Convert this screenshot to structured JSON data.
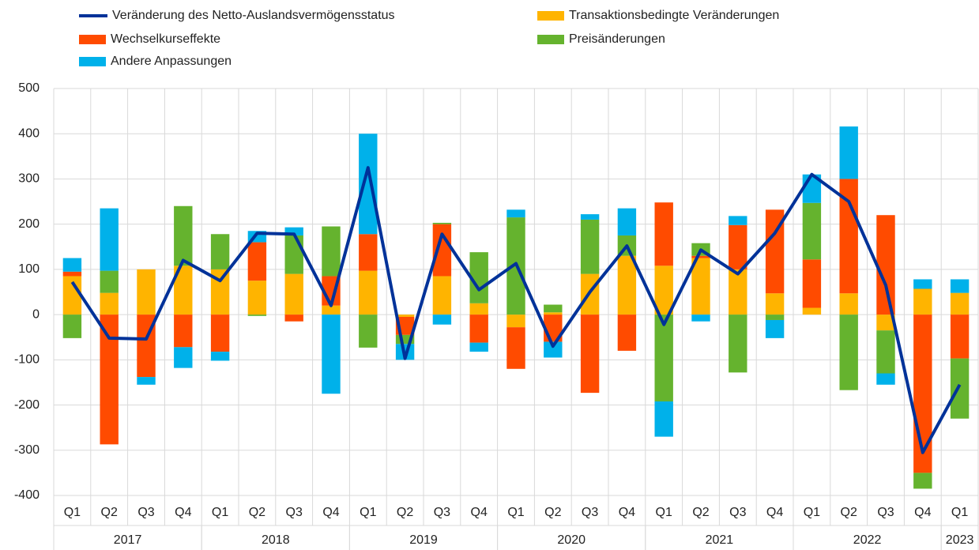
{
  "chart_data": {
    "type": "bar",
    "stacked": true,
    "categories": [
      "Q1",
      "Q2",
      "Q3",
      "Q4",
      "Q1",
      "Q2",
      "Q3",
      "Q4",
      "Q1",
      "Q2",
      "Q3",
      "Q4",
      "Q1",
      "Q2",
      "Q3",
      "Q4",
      "Q1",
      "Q2",
      "Q3",
      "Q4",
      "Q1",
      "Q2",
      "Q3",
      "Q4",
      "Q1"
    ],
    "years": [
      {
        "label": "2017",
        "quarters": 4
      },
      {
        "label": "2018",
        "quarters": 4
      },
      {
        "label": "2019",
        "quarters": 4
      },
      {
        "label": "2020",
        "quarters": 4
      },
      {
        "label": "2021",
        "quarters": 4
      },
      {
        "label": "2022",
        "quarters": 4
      },
      {
        "label": "2023",
        "quarters": 1
      }
    ],
    "line": {
      "name": "Veränderung des Netto-Auslandsvermögensstatus",
      "color": "#003299",
      "values": [
        72,
        -52,
        -54,
        120,
        75,
        180,
        178,
        20,
        325,
        -97,
        178,
        55,
        113,
        -70,
        50,
        152,
        -22,
        143,
        90,
        180,
        310,
        250,
        65,
        -305,
        -155
      ]
    },
    "series": [
      {
        "name": "Transaktionsbedingte Veränderungen",
        "color": "#ffb400",
        "values": [
          85,
          48,
          100,
          108,
          100,
          75,
          90,
          20,
          97,
          -5,
          85,
          25,
          -28,
          5,
          90,
          130,
          108,
          125,
          100,
          47,
          15,
          47,
          -35,
          57,
          48
        ]
      },
      {
        "name": "Wechselkurseffekte",
        "color": "#ff4b00",
        "values": [
          10,
          -287,
          -138,
          -72,
          -82,
          85,
          -15,
          65,
          81,
          -40,
          115,
          -62,
          -92,
          -60,
          -173,
          -80,
          140,
          5,
          98,
          185,
          107,
          253,
          220,
          -350,
          -97
        ]
      },
      {
        "name": "Preisänderungen",
        "color": "#65b32e",
        "values": [
          -52,
          49,
          0,
          132,
          78,
          -3,
          85,
          110,
          -73,
          -20,
          3,
          113,
          215,
          17,
          120,
          45,
          -192,
          28,
          -128,
          -12,
          125,
          -167,
          -95,
          -35,
          -133
        ]
      },
      {
        "name": "Andere Anpassungen",
        "color": "#00b1ea",
        "values": [
          30,
          138,
          -17,
          -46,
          -20,
          25,
          18,
          -175,
          222,
          -35,
          -22,
          -20,
          17,
          -35,
          12,
          60,
          -78,
          -15,
          20,
          -40,
          63,
          116,
          -25,
          21,
          30
        ]
      }
    ],
    "ylim": [
      -400,
      500
    ],
    "yticks": [
      -400,
      -300,
      -200,
      -100,
      0,
      100,
      200,
      300,
      400,
      500
    ],
    "grid": true
  }
}
